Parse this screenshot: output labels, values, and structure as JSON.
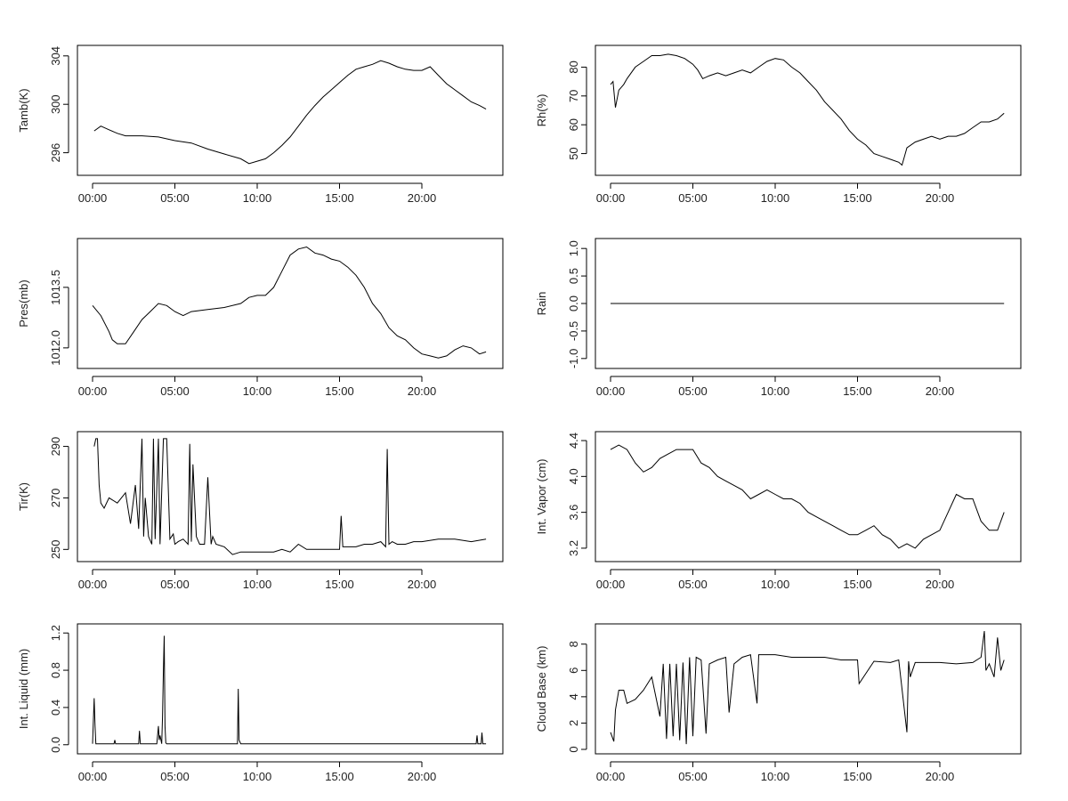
{
  "chart_data": [
    {
      "type": "line",
      "ylabel": "Tamb(K)",
      "xlabel": "",
      "title": "",
      "xlim": [
        0,
        24
      ],
      "ylim": [
        294.5,
        304.5
      ],
      "yticks": [
        "296",
        "300",
        "304"
      ],
      "xticks": [
        "00:00",
        "05:00",
        "10:00",
        "15:00",
        "20:00"
      ],
      "series": [
        {
          "x": [
            0.1,
            0.5,
            1,
            1.5,
            2,
            3,
            4,
            5,
            6,
            7,
            8,
            9,
            9.5,
            10,
            10.5,
            11,
            11.5,
            12,
            12.5,
            13,
            13.5,
            14,
            14.5,
            15,
            15.5,
            16,
            16.5,
            17,
            17.5,
            18,
            18.5,
            19,
            19.5,
            20,
            20.5,
            21,
            21.5,
            22,
            22.5,
            23,
            23.5,
            23.9
          ],
          "y": [
            297.8,
            298.2,
            297.9,
            297.6,
            297.4,
            297.4,
            297.3,
            297.0,
            296.8,
            296.3,
            295.9,
            295.5,
            295.1,
            295.3,
            295.5,
            296.0,
            296.6,
            297.3,
            298.2,
            299.1,
            299.9,
            300.6,
            301.2,
            301.8,
            302.4,
            302.9,
            303.1,
            303.3,
            303.6,
            303.4,
            303.1,
            302.9,
            302.8,
            302.8,
            303.1,
            302.4,
            301.7,
            301.2,
            300.7,
            300.2,
            299.9,
            299.6
          ]
        }
      ]
    },
    {
      "type": "line",
      "ylabel": "Rh(%)",
      "xlabel": "",
      "title": "",
      "xlim": [
        0,
        24
      ],
      "ylim": [
        44,
        86
      ],
      "yticks": [
        "50",
        "60",
        "70",
        "80"
      ],
      "xticks": [
        "00:00",
        "05:00",
        "10:00",
        "15:00",
        "20:00"
      ],
      "series": [
        {
          "x": [
            0,
            0.15,
            0.3,
            0.5,
            0.8,
            1,
            1.5,
            2,
            2.5,
            3,
            3.5,
            4,
            4.5,
            5,
            5.3,
            5.6,
            6,
            6.5,
            7,
            7.5,
            8,
            8.5,
            9,
            9.5,
            10,
            10.5,
            11,
            11.5,
            12,
            12.5,
            13,
            13.5,
            14,
            14.5,
            15,
            15.5,
            16,
            16.5,
            17,
            17.5,
            17.7,
            18,
            18.5,
            19,
            19.5,
            20,
            20.5,
            21,
            21.5,
            22,
            22.5,
            23,
            23.5,
            23.9
          ],
          "y": [
            74,
            75,
            66,
            72,
            74,
            76,
            80,
            82,
            84,
            84,
            84.5,
            84,
            83,
            81,
            79,
            76,
            77,
            78,
            77,
            78,
            79,
            78,
            80,
            82,
            83,
            82.5,
            80,
            78,
            75,
            72,
            68,
            65,
            62,
            58,
            55,
            53,
            50,
            49,
            48,
            47,
            46,
            52,
            54,
            55,
            56,
            55,
            56,
            56,
            57,
            59,
            61,
            61,
            62,
            64
          ]
        }
      ]
    },
    {
      "type": "line",
      "ylabel": "Pres(mb)",
      "xlabel": "",
      "title": "",
      "xlim": [
        0,
        24
      ],
      "ylim": [
        1011.6,
        1014.6
      ],
      "yticks": [
        "1012.0",
        "1013.5"
      ],
      "ytick_values": [
        1012.0,
        1013.5
      ],
      "xticks": [
        "00:00",
        "05:00",
        "10:00",
        "15:00",
        "20:00"
      ],
      "series": [
        {
          "x": [
            0,
            0.5,
            1,
            1.2,
            1.5,
            2,
            2.5,
            3,
            3.5,
            4,
            4.5,
            5,
            5.5,
            6,
            7,
            8,
            9,
            9.5,
            10,
            10.5,
            11,
            11.5,
            12,
            12.5,
            13,
            13.5,
            14,
            14.5,
            15,
            15.5,
            16,
            16.5,
            17,
            17.5,
            18,
            18.5,
            19,
            19.5,
            20,
            20.5,
            21,
            21.5,
            22,
            22.5,
            23,
            23.5,
            23.9
          ],
          "y": [
            1013.05,
            1012.8,
            1012.4,
            1012.2,
            1012.1,
            1012.1,
            1012.4,
            1012.7,
            1012.9,
            1013.1,
            1013.05,
            1012.9,
            1012.8,
            1012.9,
            1012.95,
            1013.0,
            1013.1,
            1013.25,
            1013.3,
            1013.3,
            1013.5,
            1013.9,
            1014.3,
            1014.45,
            1014.5,
            1014.35,
            1014.3,
            1014.2,
            1014.15,
            1014.0,
            1013.8,
            1013.5,
            1013.1,
            1012.85,
            1012.5,
            1012.3,
            1012.2,
            1012.0,
            1011.85,
            1011.8,
            1011.75,
            1011.8,
            1011.95,
            1012.05,
            1012.0,
            1011.85,
            1011.9
          ]
        }
      ]
    },
    {
      "type": "line",
      "ylabel": "Rain",
      "xlabel": "",
      "title": "",
      "xlim": [
        0,
        24
      ],
      "ylim": [
        -1.1,
        1.1
      ],
      "yticks": [
        "-1.0",
        "-0.5",
        "0.0",
        "0.5",
        "1.0"
      ],
      "ytick_values": [
        -1.0,
        -0.5,
        0.0,
        0.5,
        1.0
      ],
      "xticks": [
        "00:00",
        "05:00",
        "10:00",
        "15:00",
        "20:00"
      ],
      "series": [
        {
          "x": [
            0,
            23.9
          ],
          "y": [
            0,
            0
          ]
        }
      ]
    },
    {
      "type": "line",
      "ylabel": "Tir(K)",
      "xlabel": "",
      "title": "",
      "xlim": [
        0,
        24
      ],
      "ylim": [
        247,
        294
      ],
      "yticks": [
        "250",
        "270",
        "290"
      ],
      "xticks": [
        "00:00",
        "05:00",
        "10:00",
        "15:00",
        "20:00"
      ],
      "series": [
        {
          "x": [
            0.1,
            0.2,
            0.3,
            0.4,
            0.5,
            0.7,
            1,
            1.5,
            2,
            2.3,
            2.6,
            2.8,
            3.0,
            3.1,
            3.2,
            3.4,
            3.6,
            3.7,
            3.8,
            4.0,
            4.1,
            4.3,
            4.5,
            4.7,
            4.9,
            5.0,
            5.2,
            5.5,
            5.8,
            5.9,
            6.0,
            6.1,
            6.3,
            6.5,
            6.8,
            7.0,
            7.2,
            7.3,
            7.5,
            8,
            8.5,
            9,
            10,
            11,
            11.5,
            12,
            12.5,
            13,
            14,
            14.5,
            15,
            15.1,
            15.2,
            15.5,
            16,
            16.5,
            17,
            17.5,
            17.8,
            17.9,
            18.0,
            18.2,
            18.5,
            19,
            19.5,
            20,
            21,
            22,
            23,
            23.9
          ],
          "y": [
            290,
            293,
            293,
            275,
            268,
            266,
            270,
            268,
            272,
            260,
            275,
            258,
            293,
            255,
            270,
            255,
            252,
            293,
            254,
            293,
            252,
            293,
            293,
            254,
            256,
            252,
            253,
            254,
            252,
            291,
            253,
            283,
            255,
            252,
            252,
            278,
            252,
            255,
            252,
            251,
            248,
            249,
            249,
            249,
            250,
            249,
            252,
            250,
            250,
            250,
            250,
            263,
            251,
            251,
            251,
            252,
            252,
            253,
            251,
            289,
            252,
            253,
            252,
            252,
            253,
            253,
            254,
            254,
            253,
            254
          ]
        }
      ]
    },
    {
      "type": "line",
      "ylabel": "Int. Vapor (cm)",
      "xlabel": "",
      "title": "",
      "xlim": [
        0,
        24
      ],
      "ylim": [
        3.1,
        4.45
      ],
      "yticks": [
        "3.2",
        "3.6",
        "4.0",
        "4.4"
      ],
      "ytick_values": [
        3.2,
        3.6,
        4.0,
        4.4
      ],
      "xticks": [
        "00:00",
        "05:00",
        "10:00",
        "15:00",
        "20:00"
      ],
      "series": [
        {
          "x": [
            0,
            0.5,
            1,
            1.5,
            2,
            2.5,
            3,
            3.5,
            4,
            4.5,
            5,
            5.5,
            6,
            6.5,
            7,
            7.5,
            8,
            8.5,
            9,
            9.5,
            10,
            10.5,
            11,
            11.5,
            12,
            12.5,
            13,
            13.5,
            14,
            14.5,
            15,
            15.5,
            16,
            16.5,
            17,
            17.5,
            18,
            18.5,
            19,
            19.5,
            20,
            20.5,
            21,
            21.5,
            22,
            22.5,
            23,
            23.5,
            23.9
          ],
          "y": [
            4.3,
            4.35,
            4.3,
            4.15,
            4.05,
            4.1,
            4.2,
            4.25,
            4.3,
            4.3,
            4.3,
            4.15,
            4.1,
            4.0,
            3.95,
            3.9,
            3.85,
            3.75,
            3.8,
            3.85,
            3.8,
            3.75,
            3.75,
            3.7,
            3.6,
            3.55,
            3.5,
            3.45,
            3.4,
            3.35,
            3.35,
            3.4,
            3.45,
            3.35,
            3.3,
            3.2,
            3.25,
            3.2,
            3.3,
            3.35,
            3.4,
            3.6,
            3.8,
            3.75,
            3.75,
            3.5,
            3.4,
            3.4,
            3.6
          ]
        }
      ]
    },
    {
      "type": "line",
      "ylabel": "Int. Liquid (mm)",
      "xlabel": "",
      "title": "",
      "xlim": [
        0,
        24
      ],
      "ylim": [
        -0.05,
        1.25
      ],
      "yticks": [
        "0.0",
        "0.4",
        "0.8",
        "1.2"
      ],
      "ytick_values": [
        0.0,
        0.4,
        0.8,
        1.2
      ],
      "xticks": [
        "00:00",
        "05:00",
        "10:00",
        "15:00",
        "20:00"
      ],
      "series": [
        {
          "x": [
            0,
            0.1,
            0.15,
            0.2,
            0.3,
            0.5,
            1.3,
            1.35,
            1.4,
            2.8,
            2.85,
            2.9,
            3.9,
            4.0,
            4.05,
            4.1,
            4.2,
            4.25,
            4.3,
            4.35,
            4.4,
            4.45,
            4.5,
            8.8,
            8.85,
            8.9,
            9.0,
            23.0,
            23.3,
            23.35,
            23.4,
            23.6,
            23.65,
            23.7,
            23.9
          ],
          "y": [
            0.01,
            0.5,
            0.2,
            0.01,
            0.01,
            0.01,
            0.01,
            0.05,
            0.01,
            0.01,
            0.15,
            0.01,
            0.01,
            0.2,
            0.05,
            0.1,
            0.01,
            0.3,
            0.8,
            1.17,
            0.2,
            0.02,
            0.01,
            0.01,
            0.6,
            0.05,
            0.01,
            0.01,
            0.01,
            0.1,
            0.01,
            0.01,
            0.13,
            0.01,
            0.01
          ]
        }
      ]
    },
    {
      "type": "line",
      "ylabel": "Cloud Base (km)",
      "xlabel": "",
      "title": "",
      "xlim": [
        0,
        24
      ],
      "ylim": [
        0,
        9.2
      ],
      "yticks": [
        "0",
        "2",
        "4",
        "6",
        "8"
      ],
      "xticks": [
        "00:00",
        "05:00",
        "10:00",
        "15:00",
        "20:00"
      ],
      "series": [
        {
          "x": [
            0,
            0.2,
            0.3,
            0.5,
            0.8,
            1,
            1.5,
            2,
            2.5,
            3,
            3.2,
            3.4,
            3.6,
            3.8,
            4.0,
            4.2,
            4.4,
            4.6,
            4.8,
            5.0,
            5.2,
            5.5,
            5.8,
            6,
            6.5,
            7,
            7.2,
            7.5,
            8,
            8.5,
            8.9,
            9.0,
            9.5,
            10,
            11,
            12,
            13,
            14,
            15,
            15.1,
            16,
            17,
            17.5,
            18,
            18.1,
            18.2,
            18.5,
            19,
            20,
            21,
            22,
            22.5,
            22.7,
            22.8,
            23,
            23.3,
            23.5,
            23.7,
            23.9
          ],
          "y": [
            1.3,
            0.6,
            3,
            4.5,
            4.5,
            3.5,
            3.8,
            4.5,
            5.5,
            2.5,
            6.5,
            0.8,
            6.5,
            1.0,
            6.5,
            0.7,
            6.6,
            0.4,
            7.0,
            1.0,
            7.0,
            6.8,
            1.2,
            6.5,
            6.8,
            7.0,
            2.8,
            6.5,
            7.0,
            7.2,
            3.5,
            7.2,
            7.2,
            7.2,
            7.0,
            7.0,
            7.0,
            6.8,
            6.8,
            5.0,
            6.7,
            6.6,
            6.8,
            1.3,
            6.7,
            5.5,
            6.6,
            6.6,
            6.6,
            6.5,
            6.6,
            7.0,
            9.0,
            6.0,
            6.5,
            5.5,
            8.5,
            6.0,
            6.8
          ]
        }
      ]
    }
  ]
}
